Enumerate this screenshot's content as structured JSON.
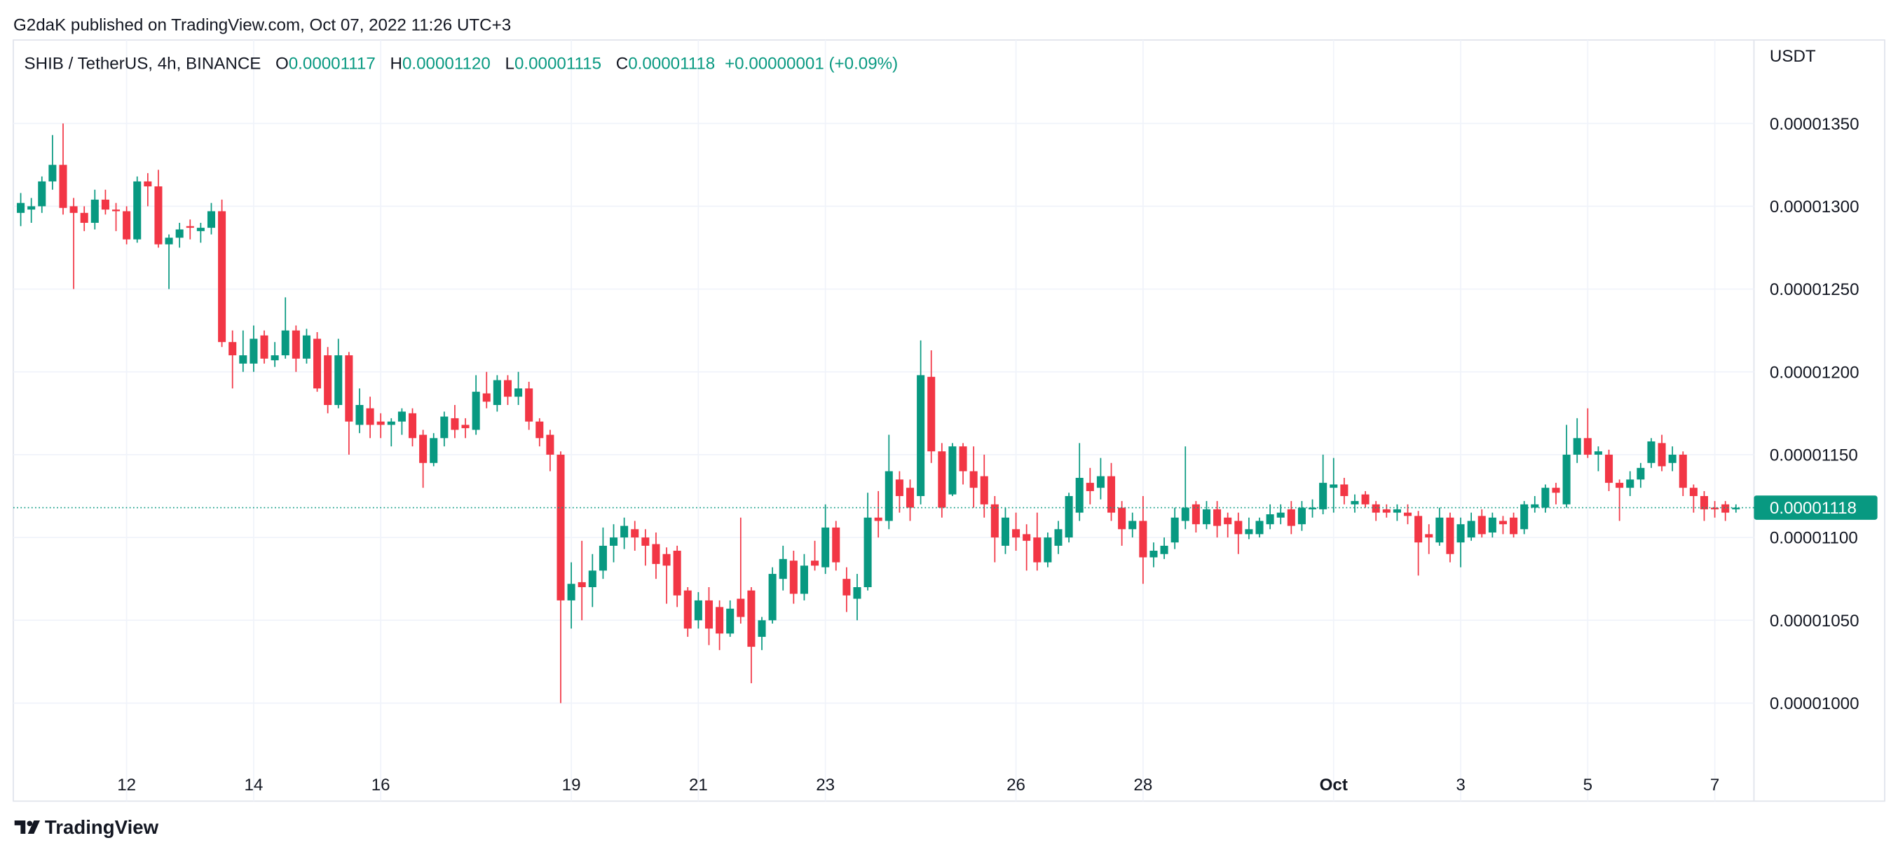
{
  "chart_data": {
    "type": "candlestick",
    "published": "G2daK published on TradingView.com, Oct 07, 2022 11:26 UTC+3",
    "title": "SHIB / TetherUS, 4h, BINANCE",
    "legend": [
      {
        "key": "O",
        "value": "0.00001117"
      },
      {
        "key": "H",
        "value": "0.00001120"
      },
      {
        "key": "L",
        "value": "0.00001115"
      },
      {
        "key": "C",
        "value": "0.00001118"
      }
    ],
    "change": "+0.00000001 (+0.09%)",
    "currency": "USDT",
    "brand": "TradingView",
    "up_color": "#089981",
    "down_color": "#f23645",
    "grid": true,
    "open": [
      1.296e-05,
      1.298e-05,
      1.3e-05,
      1.315e-05,
      1.325e-05,
      1.3e-05,
      1.296e-05,
      1.29e-05,
      1.304e-05,
      1.298e-05,
      1.297e-05,
      1.28e-05,
      1.315e-05,
      1.312e-05,
      1.277e-05,
      1.281e-05,
      1.288e-05,
      1.285e-05,
      1.287e-05,
      1.297e-05,
      1.218e-05,
      1.205e-05,
      1.205e-05,
      1.222e-05,
      1.207e-05,
      1.21e-05,
      1.225e-05,
      1.208e-05,
      1.22e-05,
      1.21e-05,
      1.18e-05,
      1.21e-05,
      1.168e-05,
      1.178e-05,
      1.17e-05,
      1.168e-05,
      1.17e-05,
      1.175e-05,
      1.162e-05,
      1.145e-05,
      1.16e-05,
      1.172e-05,
      1.168e-05,
      1.165e-05,
      1.187e-05,
      1.18e-05,
      1.195e-05,
      1.185e-05,
      1.19e-05,
      1.17e-05,
      1.162e-05,
      1.15e-05,
      1.062e-05,
      1.073e-05,
      1.07e-05,
      1.08e-05,
      1.095e-05,
      1.1e-05,
      1.105e-05,
      1.1e-05,
      1.096e-05,
      1.09e-05,
      1.092e-05,
      1.068e-05,
      1.05e-05,
      1.062e-05,
      1.058e-05,
      1.042e-05,
      1.063e-05,
      1.068e-05,
      1.04e-05,
      1.05e-05,
      1.075e-05,
      1.086e-05,
      1.066e-05,
      1.086e-05,
      1.082e-05,
      1.106e-05,
      1.075e-05,
      1.063e-05,
      1.07e-05,
      1.112e-05,
      1.11e-05,
      1.135e-05,
      1.13e-05,
      1.125e-05,
      1.197e-05,
      1.152e-05,
      1.126e-05,
      1.155e-05,
      1.14e-05,
      1.137e-05,
      1.12e-05,
      1.095e-05,
      1.105e-05,
      1.102e-05,
      1.1e-05,
      1.085e-05,
      1.095e-05,
      1.1e-05,
      1.115e-05,
      1.133e-05,
      1.13e-05,
      1.137e-05,
      1.118e-05,
      1.105e-05,
      1.11e-05,
      1.088e-05,
      1.09e-05,
      1.097e-05,
      1.11e-05,
      1.12e-05,
      1.108e-05,
      1.117e-05,
      1.112e-05,
      1.11e-05,
      1.102e-05,
      1.102e-05,
      1.108e-05,
      1.112e-05,
      1.117e-05,
      1.108e-05,
      1.117e-05,
      1.117e-05,
      1.13e-05,
      1.132e-05,
      1.12e-05,
      1.126e-05,
      1.12e-05,
      1.117e-05,
      1.115e-05,
      1.115e-05,
      1.113e-05,
      1.102e-05,
      1.097e-05,
      1.112e-05,
      1.097e-05,
      1.1e-05,
      1.113e-05,
      1.103e-05,
      1.11e-05,
      1.112e-05,
      1.105e-05,
      1.118e-05,
      1.118e-05,
      1.13e-05,
      1.12e-05,
      1.15e-05,
      1.16e-05,
      1.15e-05,
      1.15e-05,
      1.133e-05,
      1.13e-05,
      1.135e-05,
      1.145e-05,
      1.157e-05,
      1.145e-05,
      1.15e-05,
      1.13e-05,
      1.125e-05,
      1.118e-05,
      1.12e-05,
      1.117e-05
    ],
    "high": [
      1.308e-05,
      1.305e-05,
      1.318e-05,
      1.343e-05,
      1.35e-05,
      1.305e-05,
      1.3e-05,
      1.31e-05,
      1.31e-05,
      1.302e-05,
      1.3e-05,
      1.318e-05,
      1.32e-05,
      1.322e-05,
      1.283e-05,
      1.29e-05,
      1.292e-05,
      1.29e-05,
      1.302e-05,
      1.304e-05,
      1.225e-05,
      1.225e-05,
      1.228e-05,
      1.225e-05,
      1.218e-05,
      1.245e-05,
      1.228e-05,
      1.226e-05,
      1.224e-05,
      1.215e-05,
      1.22e-05,
      1.212e-05,
      1.19e-05,
      1.185e-05,
      1.175e-05,
      1.172e-05,
      1.178e-05,
      1.178e-05,
      1.165e-05,
      1.163e-05,
      1.176e-05,
      1.18e-05,
      1.172e-05,
      1.198e-05,
      1.2e-05,
      1.198e-05,
      1.198e-05,
      1.2e-05,
      1.194e-05,
      1.172e-05,
      1.165e-05,
      1.152e-05,
      1.085e-05,
      1.098e-05,
      1.09e-05,
      1.106e-05,
      1.108e-05,
      1.112e-05,
      1.11e-05,
      1.105e-05,
      1.103e-05,
      1.094e-05,
      1.095e-05,
      1.07e-05,
      1.067e-05,
      1.07e-05,
      1.062e-05,
      1.062e-05,
      1.112e-05,
      1.07e-05,
      1.052e-05,
      1.082e-05,
      1.095e-05,
      1.092e-05,
      1.09e-05,
      1.098e-05,
      1.12e-05,
      1.11e-05,
      1.082e-05,
      1.078e-05,
      1.127e-05,
      1.128e-05,
      1.162e-05,
      1.14e-05,
      1.135e-05,
      1.219e-05,
      1.213e-05,
      1.157e-05,
      1.157e-05,
      1.157e-05,
      1.155e-05,
      1.15e-05,
      1.125e-05,
      1.118e-05,
      1.115e-05,
      1.108e-05,
      1.115e-05,
      1.103e-05,
      1.11e-05,
      1.127e-05,
      1.157e-05,
      1.142e-05,
      1.148e-05,
      1.145e-05,
      1.122e-05,
      1.115e-05,
      1.125e-05,
      1.097e-05,
      1.1e-05,
      1.118e-05,
      1.155e-05,
      1.122e-05,
      1.122e-05,
      1.122e-05,
      1.115e-05,
      1.115e-05,
      1.112e-05,
      1.112e-05,
      1.12e-05,
      1.12e-05,
      1.122e-05,
      1.122e-05,
      1.123e-05,
      1.15e-05,
      1.148e-05,
      1.136e-05,
      1.126e-05,
      1.128e-05,
      1.122e-05,
      1.12e-05,
      1.12e-05,
      1.12e-05,
      1.116e-05,
      1.108e-05,
      1.118e-05,
      1.115e-05,
      1.112e-05,
      1.115e-05,
      1.117e-05,
      1.115e-05,
      1.113e-05,
      1.115e-05,
      1.122e-05,
      1.125e-05,
      1.132e-05,
      1.133e-05,
      1.168e-05,
      1.172e-05,
      1.178e-05,
      1.155e-05,
      1.153e-05,
      1.135e-05,
      1.14e-05,
      1.145e-05,
      1.16e-05,
      1.162e-05,
      1.155e-05,
      1.152e-05,
      1.132e-05,
      1.128e-05,
      1.122e-05,
      1.122e-05,
      1.12e-05
    ],
    "low": [
      1.288e-05,
      1.29e-05,
      1.296e-05,
      1.31e-05,
      1.295e-05,
      1.25e-05,
      1.285e-05,
      1.286e-05,
      1.295e-05,
      1.285e-05,
      1.277e-05,
      1.278e-05,
      1.3e-05,
      1.275e-05,
      1.25e-05,
      1.275e-05,
      1.28e-05,
      1.278e-05,
      1.283e-05,
      1.215e-05,
      1.19e-05,
      1.2e-05,
      1.2e-05,
      1.205e-05,
      1.203e-05,
      1.208e-05,
      1.2e-05,
      1.205e-05,
      1.188e-05,
      1.175e-05,
      1.178e-05,
      1.15e-05,
      1.163e-05,
      1.16e-05,
      1.16e-05,
      1.155e-05,
      1.162e-05,
      1.155e-05,
      1.13e-05,
      1.143e-05,
      1.155e-05,
      1.16e-05,
      1.16e-05,
      1.162e-05,
      1.178e-05,
      1.176e-05,
      1.18e-05,
      1.18e-05,
      1.165e-05,
      1.155e-05,
      1.14e-05,
      1e-05,
      1.045e-05,
      1.05e-05,
      1.058e-05,
      1.075e-05,
      1.085e-05,
      1.093e-05,
      1.092e-05,
      1.083e-05,
      1.075e-05,
      1.06e-05,
      1.058e-05,
      1.04e-05,
      1.045e-05,
      1.035e-05,
      1.032e-05,
      1.04e-05,
      1.048e-05,
      1.012e-05,
      1.032e-05,
      1.048e-05,
      1.068e-05,
      1.06e-05,
      1.062e-05,
      1.08e-05,
      1.078e-05,
      1.08e-05,
      1.055e-05,
      1.05e-05,
      1.068e-05,
      1.1e-05,
      1.105e-05,
      1.115e-05,
      1.11e-05,
      1.12e-05,
      1.145e-05,
      1.112e-05,
      1.125e-05,
      1.132e-05,
      1.118e-05,
      1.112e-05,
      1.085e-05,
      1.09e-05,
      1.092e-05,
      1.08e-05,
      1.08e-05,
      1.082e-05,
      1.09e-05,
      1.097e-05,
      1.11e-05,
      1.12e-05,
      1.123e-05,
      1.11e-05,
      1.095e-05,
      1.1e-05,
      1.072e-05,
      1.082e-05,
      1.087e-05,
      1.093e-05,
      1.105e-05,
      1.103e-05,
      1.105e-05,
      1.1e-05,
      1.1e-05,
      1.09e-05,
      1.099e-05,
      1.1e-05,
      1.105e-05,
      1.108e-05,
      1.102e-05,
      1.104e-05,
      1.112e-05,
      1.114e-05,
      1.115e-05,
      1.12e-05,
      1.115e-05,
      1.118e-05,
      1.11e-05,
      1.112e-05,
      1.11e-05,
      1.108e-05,
      1.077e-05,
      1.09e-05,
      1.095e-05,
      1.085e-05,
      1.082e-05,
      1.098e-05,
      1.1e-05,
      1.1e-05,
      1.102e-05,
      1.1e-05,
      1.102e-05,
      1.115e-05,
      1.115e-05,
      1.12e-05,
      1.118e-05,
      1.145e-05,
      1.148e-05,
      1.14e-05,
      1.128e-05,
      1.11e-05,
      1.125e-05,
      1.13e-05,
      1.142e-05,
      1.14e-05,
      1.14e-05,
      1.125e-05,
      1.115e-05,
      1.11e-05,
      1.112e-05,
      1.11e-05,
      1.115e-05
    ],
    "close": [
      1.302e-05,
      1.3e-05,
      1.315e-05,
      1.325e-05,
      1.299e-05,
      1.296e-05,
      1.29e-05,
      1.304e-05,
      1.298e-05,
      1.297e-05,
      1.28e-05,
      1.315e-05,
      1.312e-05,
      1.277e-05,
      1.281e-05,
      1.286e-05,
      1.287e-05,
      1.287e-05,
      1.297e-05,
      1.218e-05,
      1.21e-05,
      1.21e-05,
      1.22e-05,
      1.208e-05,
      1.21e-05,
      1.225e-05,
      1.208e-05,
      1.222e-05,
      1.19e-05,
      1.18e-05,
      1.21e-05,
      1.17e-05,
      1.18e-05,
      1.168e-05,
      1.168e-05,
      1.17e-05,
      1.176e-05,
      1.16e-05,
      1.145e-05,
      1.16e-05,
      1.173e-05,
      1.165e-05,
      1.166e-05,
      1.188e-05,
      1.182e-05,
      1.195e-05,
      1.185e-05,
      1.19e-05,
      1.17e-05,
      1.16e-05,
      1.15e-05,
      1.062e-05,
      1.072e-05,
      1.07e-05,
      1.08e-05,
      1.095e-05,
      1.1e-05,
      1.107e-05,
      1.1e-05,
      1.095e-05,
      1.084e-05,
      1.083e-05,
      1.065e-05,
      1.045e-05,
      1.062e-05,
      1.045e-05,
      1.042e-05,
      1.057e-05,
      1.052e-05,
      1.034e-05,
      1.05e-05,
      1.078e-05,
      1.087e-05,
      1.066e-05,
      1.083e-05,
      1.083e-05,
      1.106e-05,
      1.085e-05,
      1.065e-05,
      1.07e-05,
      1.112e-05,
      1.11e-05,
      1.14e-05,
      1.125e-05,
      1.118e-05,
      1.198e-05,
      1.152e-05,
      1.118e-05,
      1.155e-05,
      1.14e-05,
      1.13e-05,
      1.12e-05,
      1.1e-05,
      1.112e-05,
      1.1e-05,
      1.098e-05,
      1.085e-05,
      1.1e-05,
      1.105e-05,
      1.125e-05,
      1.136e-05,
      1.128e-05,
      1.137e-05,
      1.115e-05,
      1.105e-05,
      1.11e-05,
      1.088e-05,
      1.092e-05,
      1.095e-05,
      1.112e-05,
      1.118e-05,
      1.108e-05,
      1.117e-05,
      1.107e-05,
      1.108e-05,
      1.102e-05,
      1.105e-05,
      1.11e-05,
      1.114e-05,
      1.115e-05,
      1.107e-05,
      1.118e-05,
      1.118e-05,
      1.133e-05,
      1.132e-05,
      1.125e-05,
      1.122e-05,
      1.12e-05,
      1.115e-05,
      1.115e-05,
      1.117e-05,
      1.113e-05,
      1.097e-05,
      1.1e-05,
      1.112e-05,
      1.09e-05,
      1.108e-05,
      1.11e-05,
      1.102e-05,
      1.112e-05,
      1.108e-05,
      1.102e-05,
      1.12e-05,
      1.12e-05,
      1.13e-05,
      1.127e-05,
      1.15e-05,
      1.16e-05,
      1.15e-05,
      1.152e-05,
      1.133e-05,
      1.13e-05,
      1.135e-05,
      1.142e-05,
      1.158e-05,
      1.143e-05,
      1.15e-05,
      1.13e-05,
      1.125e-05,
      1.117e-05,
      1.117e-05,
      1.115e-05,
      1.118e-05
    ],
    "xlim": [
      -0.7,
      163.7
    ],
    "xticks": [
      {
        "value": 10,
        "label": "12"
      },
      {
        "value": 22,
        "label": "14"
      },
      {
        "value": 34,
        "label": "16"
      },
      {
        "value": 52,
        "label": "19"
      },
      {
        "value": 64,
        "label": "21"
      },
      {
        "value": 76,
        "label": "23"
      },
      {
        "value": 94,
        "label": "26"
      },
      {
        "value": 106,
        "label": "28"
      },
      {
        "value": 124,
        "label": "Oct"
      },
      {
        "value": 136,
        "label": "3"
      },
      {
        "value": 148,
        "label": "5"
      },
      {
        "value": 160,
        "label": "7"
      }
    ],
    "ylim": [
      9.408e-06,
      1.4004e-05
    ],
    "yticks": [
      {
        "value": 1e-05,
        "label": "0.00001000"
      },
      {
        "value": 1.05e-05,
        "label": "0.00001050"
      },
      {
        "value": 1.1e-05,
        "label": "0.00001100"
      },
      {
        "value": 1.15e-05,
        "label": "0.00001150"
      },
      {
        "value": 1.2e-05,
        "label": "0.00001200"
      },
      {
        "value": 1.25e-05,
        "label": "0.00001250"
      },
      {
        "value": 1.3e-05,
        "label": "0.00001300"
      },
      {
        "value": 1.35e-05,
        "label": "0.00001350"
      }
    ],
    "last_price": {
      "value": 1.118e-05,
      "label": "0.00001118"
    }
  }
}
